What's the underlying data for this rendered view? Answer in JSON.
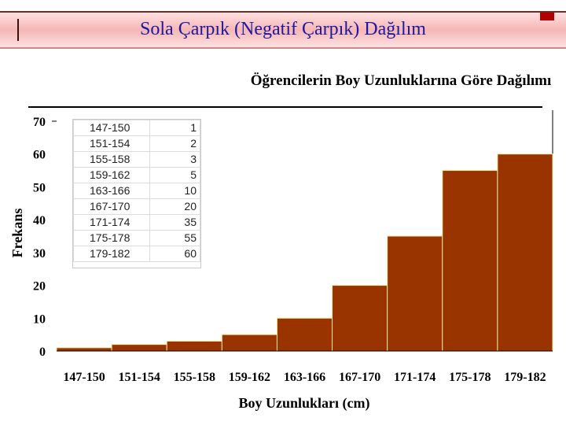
{
  "slide": {
    "title": "Sola Çarpık (Negatif Çarpık) Dağılım"
  },
  "colors": {
    "bar": "#993300",
    "bar_edge": "#f2e6a0",
    "title_text": "#1a1aa0"
  },
  "chart_data": {
    "type": "bar",
    "title": "Öğrencilerin Boy Uzunluklarına Göre Dağılımı",
    "xlabel": "Boy Uzunlukları (cm)",
    "ylabel": "Frekans",
    "categories": [
      "147-150",
      "151-154",
      "155-158",
      "159-162",
      "163-166",
      "167-170",
      "171-174",
      "175-178",
      "179-182"
    ],
    "values": [
      1,
      2,
      3,
      5,
      10,
      20,
      35,
      55,
      60
    ],
    "ylim": [
      0,
      70
    ],
    "yticks": [
      0,
      10,
      20,
      30,
      40,
      50,
      60,
      70
    ],
    "grid": false,
    "legend": "none"
  },
  "data_table": {
    "rows": [
      {
        "range": "147-150",
        "freq": "1"
      },
      {
        "range": "151-154",
        "freq": "2"
      },
      {
        "range": "155-158",
        "freq": "3"
      },
      {
        "range": "159-162",
        "freq": "5"
      },
      {
        "range": "163-166",
        "freq": "10"
      },
      {
        "range": "167-170",
        "freq": "20"
      },
      {
        "range": "171-174",
        "freq": "35"
      },
      {
        "range": "175-178",
        "freq": "55"
      },
      {
        "range": "179-182",
        "freq": "60"
      }
    ]
  }
}
